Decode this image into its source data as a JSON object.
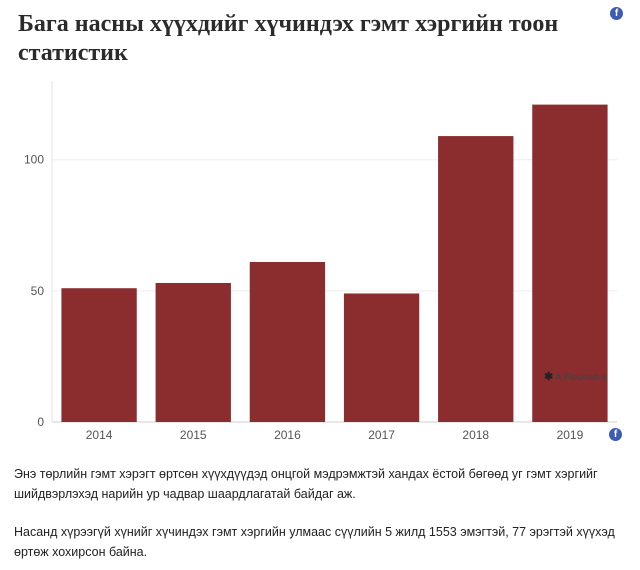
{
  "chart_data": {
    "type": "bar",
    "title": "Бага насны хүүхдийг хүчиндэх гэмт хэргийн тоон статистик",
    "categories": [
      "2014",
      "2015",
      "2016",
      "2017",
      "2018",
      "2019"
    ],
    "values": [
      51,
      53,
      61,
      49,
      109,
      121
    ],
    "ylim": [
      0,
      130
    ],
    "yticks": [
      0,
      50,
      100
    ],
    "xlabel": "",
    "ylabel": "",
    "bar_color": "#8b2c2e",
    "grid": true
  },
  "icons": {
    "share": "facebook-icon",
    "credit": "flourish-star-icon"
  },
  "share_glyph": "f",
  "credit": {
    "star": "✱",
    "text": "A Flourish c"
  },
  "paragraphs": [
    "Энэ төрлийн гэмт хэрэгт өртсөн хүүхдүүдэд онцгой мэдрэмжтэй хандах ёстой бөгөөд уг гэмт хэргийг шийдвэрлэхэд нарийн ур чадвар шаардлагатай байдаг аж.",
    "Насанд хүрээгүй хүнийг хүчиндэх гэмт хэргийн улмаас сүүлийн 5 жилд 1553 эмэгтэй, 77 эрэгтэй хүүхэд өртөж хохирсон байна."
  ]
}
